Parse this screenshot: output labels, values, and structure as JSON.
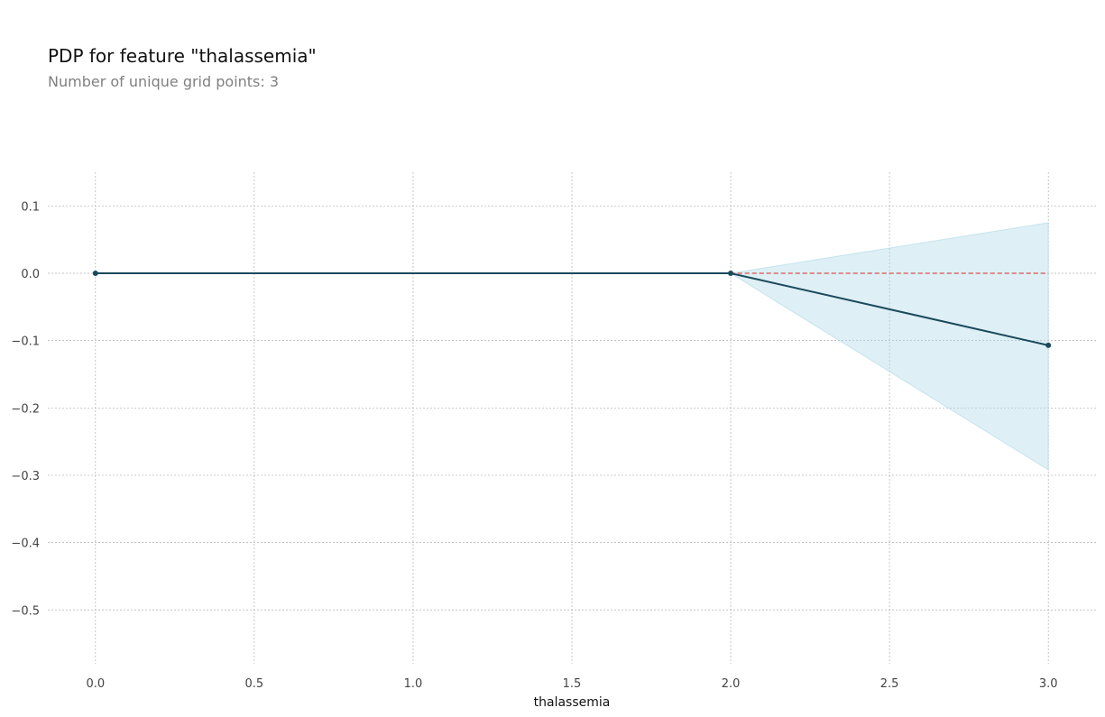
{
  "chart_data": {
    "type": "line",
    "title": "PDP for feature \"thalassemia\"",
    "subtitle": "Number of unique grid points: 3",
    "xlabel": "thalassemia",
    "ylabel": "",
    "x": [
      0,
      2,
      3
    ],
    "series": [
      {
        "values": [
          0.0,
          0.0,
          -0.107
        ]
      }
    ],
    "confidence_band": {
      "lower": [
        0.0,
        0.0,
        -0.292
      ],
      "upper": [
        0.0,
        0.0,
        0.075
      ]
    },
    "reference_line": 0.0,
    "xlim": [
      -0.15,
      3.15
    ],
    "ylim": [
      -0.58,
      0.15
    ],
    "xticks": [
      0.0,
      0.5,
      1.0,
      1.5,
      2.0,
      2.5,
      3.0
    ],
    "xtick_labels": [
      "0.0",
      "0.5",
      "1.0",
      "1.5",
      "2.0",
      "2.5",
      "3.0"
    ],
    "yticks": [
      0.1,
      0.0,
      -0.1,
      -0.2,
      -0.3,
      -0.4,
      -0.5
    ],
    "ytick_labels": [
      "0.1",
      "0.0",
      "−0.1",
      "−0.2",
      "−0.3",
      "−0.4",
      "−0.5"
    ],
    "grid": true,
    "colors": {
      "line": "#1a4a5c",
      "band": "#add8e6",
      "reference": "#d9534f",
      "grid": "#b0b0b0",
      "tick_text": "#444444",
      "label_text": "#111111"
    }
  }
}
